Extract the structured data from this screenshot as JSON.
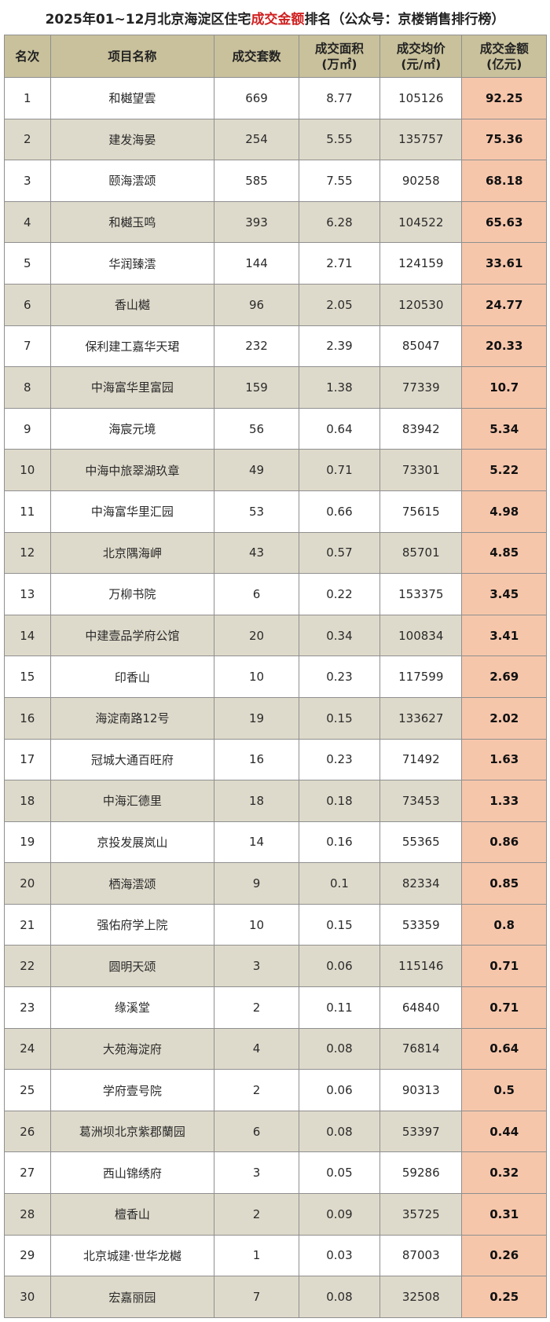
{
  "title": {
    "prefix": "2025年01~12月北京海淀区住宅",
    "highlight": "成交金额",
    "suffix": "排名（公众号：京楼销售排行榜）"
  },
  "colors": {
    "header_bg": "#c9c19c",
    "alt_row_bg": "#dedacb",
    "amount_bg": "#f6c6ab",
    "highlight_text": "#d02020"
  },
  "table": {
    "headers": [
      {
        "line1": "名次",
        "line2": ""
      },
      {
        "line1": "项目名称",
        "line2": ""
      },
      {
        "line1": "成交套数",
        "line2": ""
      },
      {
        "line1": "成交面积",
        "line2": "(万㎡)"
      },
      {
        "line1": "成交均价",
        "line2": "(元/㎡)"
      },
      {
        "line1": "成交金额",
        "line2": "(亿元)"
      }
    ],
    "rows": [
      {
        "rank": "1",
        "name": "和樾望雲",
        "units": "669",
        "area": "8.77",
        "price": "105126",
        "amount": "92.25"
      },
      {
        "rank": "2",
        "name": "建发海晏",
        "units": "254",
        "area": "5.55",
        "price": "135757",
        "amount": "75.36"
      },
      {
        "rank": "3",
        "name": "颐海澐颂",
        "units": "585",
        "area": "7.55",
        "price": "90258",
        "amount": "68.18"
      },
      {
        "rank": "4",
        "name": "和樾玉鸣",
        "units": "393",
        "area": "6.28",
        "price": "104522",
        "amount": "65.63"
      },
      {
        "rank": "5",
        "name": "华润臻澐",
        "units": "144",
        "area": "2.71",
        "price": "124159",
        "amount": "33.61"
      },
      {
        "rank": "6",
        "name": "香山樾",
        "units": "96",
        "area": "2.05",
        "price": "120530",
        "amount": "24.77"
      },
      {
        "rank": "7",
        "name": "保利建工嘉华天珺",
        "units": "232",
        "area": "2.39",
        "price": "85047",
        "amount": "20.33"
      },
      {
        "rank": "8",
        "name": "中海富华里富园",
        "units": "159",
        "area": "1.38",
        "price": "77339",
        "amount": "10.7"
      },
      {
        "rank": "9",
        "name": "海宸元境",
        "units": "56",
        "area": "0.64",
        "price": "83942",
        "amount": "5.34"
      },
      {
        "rank": "10",
        "name": "中海中旅翠湖玖章",
        "units": "49",
        "area": "0.71",
        "price": "73301",
        "amount": "5.22"
      },
      {
        "rank": "11",
        "name": "中海富华里汇园",
        "units": "53",
        "area": "0.66",
        "price": "75615",
        "amount": "4.98"
      },
      {
        "rank": "12",
        "name": "北京隅海岬",
        "units": "43",
        "area": "0.57",
        "price": "85701",
        "amount": "4.85"
      },
      {
        "rank": "13",
        "name": "万柳书院",
        "units": "6",
        "area": "0.22",
        "price": "153375",
        "amount": "3.45"
      },
      {
        "rank": "14",
        "name": "中建壹品学府公馆",
        "units": "20",
        "area": "0.34",
        "price": "100834",
        "amount": "3.41"
      },
      {
        "rank": "15",
        "name": "印香山",
        "units": "10",
        "area": "0.23",
        "price": "117599",
        "amount": "2.69"
      },
      {
        "rank": "16",
        "name": "海淀南路12号",
        "units": "19",
        "area": "0.15",
        "price": "133627",
        "amount": "2.02"
      },
      {
        "rank": "17",
        "name": "冠城大通百旺府",
        "units": "16",
        "area": "0.23",
        "price": "71492",
        "amount": "1.63"
      },
      {
        "rank": "18",
        "name": "中海汇德里",
        "units": "18",
        "area": "0.18",
        "price": "73453",
        "amount": "1.33"
      },
      {
        "rank": "19",
        "name": "京投发展岚山",
        "units": "14",
        "area": "0.16",
        "price": "55365",
        "amount": "0.86"
      },
      {
        "rank": "20",
        "name": "栖海澐颂",
        "units": "9",
        "area": "0.1",
        "price": "82334",
        "amount": "0.85"
      },
      {
        "rank": "21",
        "name": "强佑府学上院",
        "units": "10",
        "area": "0.15",
        "price": "53359",
        "amount": "0.8"
      },
      {
        "rank": "22",
        "name": "圆明天颂",
        "units": "3",
        "area": "0.06",
        "price": "115146",
        "amount": "0.71"
      },
      {
        "rank": "23",
        "name": "缘溪堂",
        "units": "2",
        "area": "0.11",
        "price": "64840",
        "amount": "0.71"
      },
      {
        "rank": "24",
        "name": "大苑海淀府",
        "units": "4",
        "area": "0.08",
        "price": "76814",
        "amount": "0.64"
      },
      {
        "rank": "25",
        "name": "学府壹号院",
        "units": "2",
        "area": "0.06",
        "price": "90313",
        "amount": "0.5"
      },
      {
        "rank": "26",
        "name": "葛洲坝北京紫郡蘭园",
        "units": "6",
        "area": "0.08",
        "price": "53397",
        "amount": "0.44"
      },
      {
        "rank": "27",
        "name": "西山锦绣府",
        "units": "3",
        "area": "0.05",
        "price": "59286",
        "amount": "0.32"
      },
      {
        "rank": "28",
        "name": "檀香山",
        "units": "2",
        "area": "0.09",
        "price": "35725",
        "amount": "0.31"
      },
      {
        "rank": "29",
        "name": "北京城建·世华龙樾",
        "units": "1",
        "area": "0.03",
        "price": "87003",
        "amount": "0.26"
      },
      {
        "rank": "30",
        "name": "宏嘉丽园",
        "units": "7",
        "area": "0.08",
        "price": "32508",
        "amount": "0.25"
      }
    ]
  }
}
